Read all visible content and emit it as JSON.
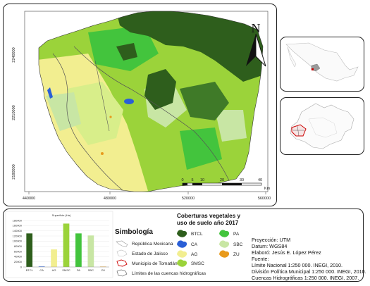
{
  "main_map": {
    "x_ticks": [
      "440000",
      "480000",
      "520000",
      "560000"
    ],
    "y_ticks": [
      "2240000",
      "2210000",
      "2180000"
    ],
    "north_label": "N",
    "scale_labels": [
      "0",
      "5",
      "10",
      "20",
      "30",
      "40"
    ],
    "scale_unit": "Km"
  },
  "chart": {
    "title": "Superficie (Ha)",
    "y_ticks": [
      "0",
      "20000",
      "40000",
      "60000",
      "80000",
      "100000",
      "120000",
      "140000",
      "160000",
      "180000"
    ]
  },
  "chart_data": {
    "type": "bar",
    "title": "Superficie (Ha)",
    "categories": [
      "BTCL",
      "CA",
      "AG",
      "SMSC",
      "PA",
      "SBC",
      "ZU"
    ],
    "values": [
      130000,
      2000,
      68000,
      168000,
      130000,
      122000,
      1500
    ],
    "ylim": [
      0,
      180000
    ],
    "colors": [
      "#2e5e1c",
      "#2a5fd6",
      "#f2ee90",
      "#9bd33a",
      "#43c43d",
      "#c8e6a4",
      "#e89a1c"
    ]
  },
  "simbologia": {
    "title": "Simbología",
    "items": [
      {
        "label": "República Mexicana",
        "icon": "mexico-shape-icon"
      },
      {
        "label": "Estado de Jalisco",
        "icon": "jalisco-shape-icon"
      },
      {
        "label": "Municipio de Tomatlán",
        "icon": "municipio-shape-icon"
      },
      {
        "label": "Límites de las cuencas hidrográficas",
        "icon": "cuencas-shape-icon"
      }
    ]
  },
  "coberturas": {
    "title_line1": "Coberturas vegetales y",
    "title_line2": "uso de suelo año 2017",
    "items": [
      {
        "code": "BTCL",
        "color": "#2e5e1c"
      },
      {
        "code": "PA",
        "color": "#43c43d"
      },
      {
        "code": "CA",
        "color": "#2a5fd6"
      },
      {
        "code": "SBC",
        "color": "#c8e6a4"
      },
      {
        "code": "AG",
        "color": "#f2ee90"
      },
      {
        "code": "ZU",
        "color": "#e89a1c"
      },
      {
        "code": "SMSC",
        "color": "#9bd33a"
      }
    ]
  },
  "metadata": {
    "lines": [
      "Proyección: UTM",
      "Datum: WGS84",
      "Elaboró: Jesús E. López Pérez",
      "Fuente:",
      "Límite Nacional 1:250 000. INEGI, 2010.",
      "División Política Municipal 1:250 000. INEGI, 2010.",
      "Cuencas Hidrográficas 1:250 000. INEGI, 2007."
    ]
  }
}
